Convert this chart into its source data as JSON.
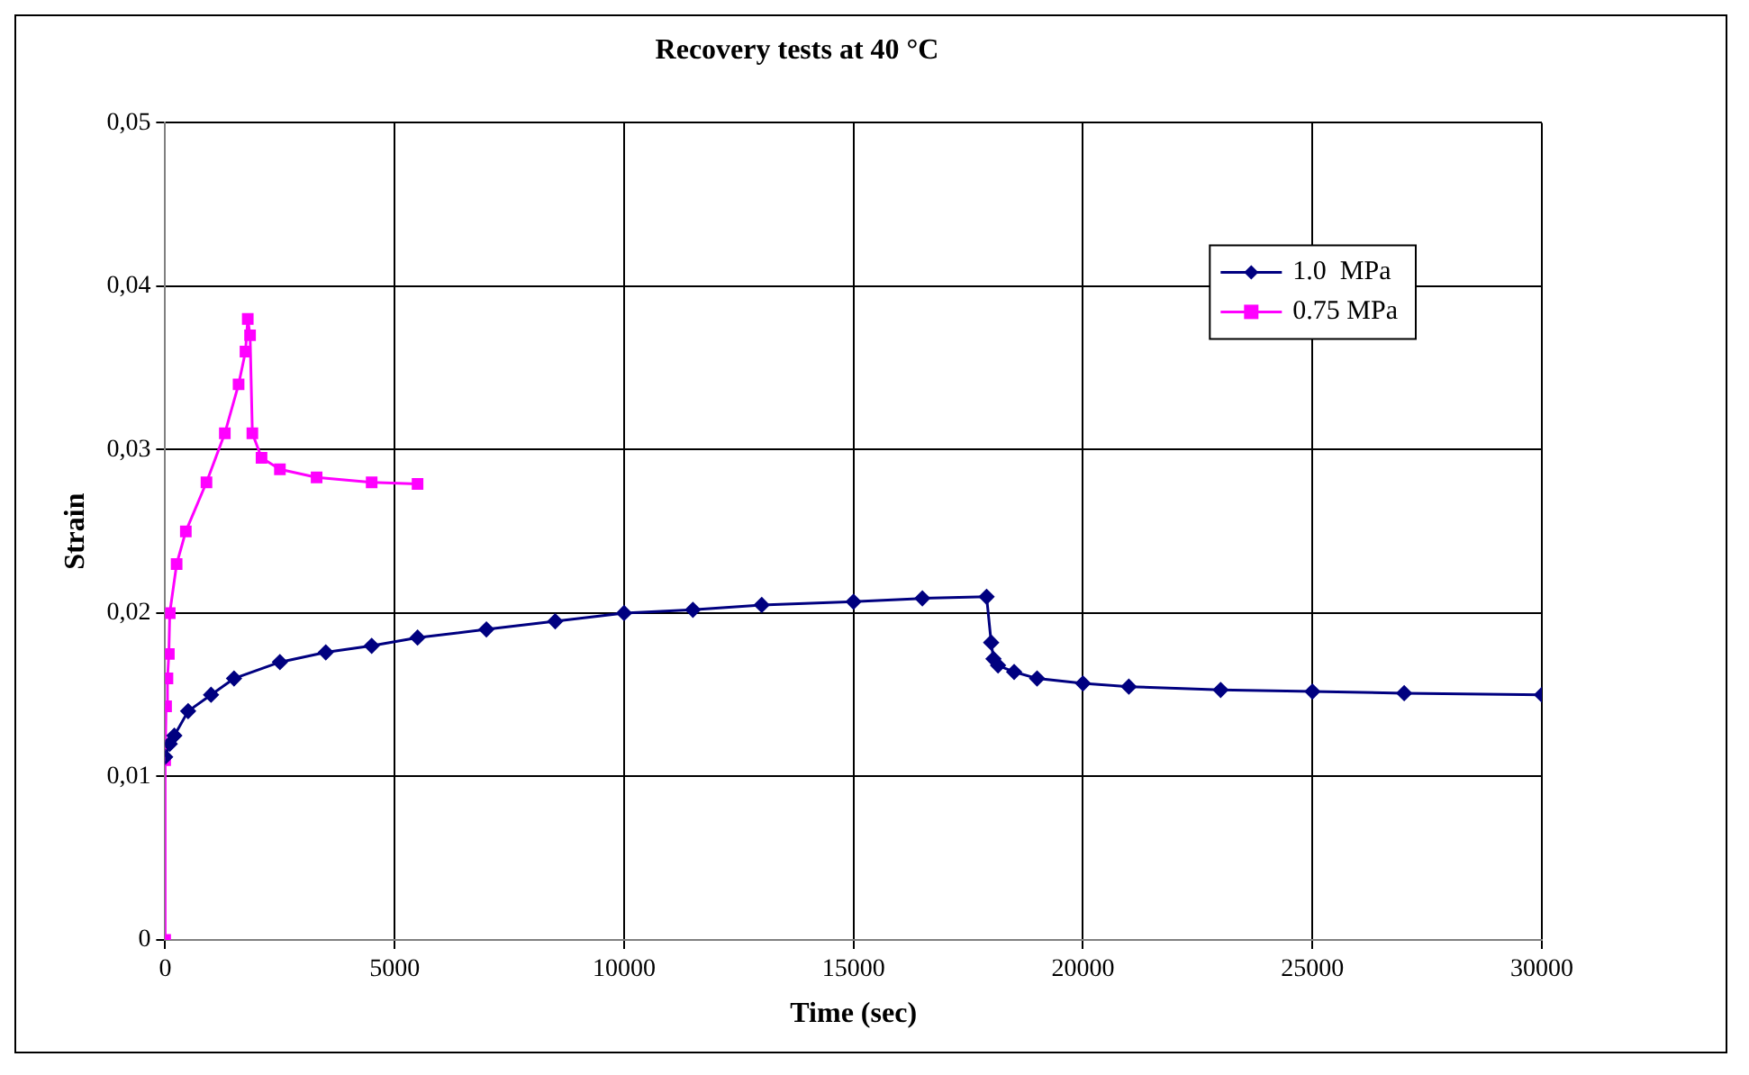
{
  "chart_data": {
    "type": "line",
    "title": "Recovery tests at 40 °C",
    "xlabel": "Time (sec)",
    "ylabel": "Strain",
    "xlim": [
      0,
      30000
    ],
    "xticks": [
      0,
      5000,
      10000,
      15000,
      20000,
      25000,
      30000
    ],
    "ylim": [
      0,
      0.05
    ],
    "yticks": [
      0,
      {
        "value": 0.01,
        "label": "0,01"
      },
      {
        "value": 0.02,
        "label": "0,02"
      },
      {
        "value": 0.03,
        "label": "0,03"
      },
      {
        "value": 0.04,
        "label": "0,04"
      },
      {
        "value": 0.05,
        "label": "0,05"
      }
    ],
    "grid": true,
    "legend": "top right",
    "line_style": "solid",
    "series": [
      {
        "name": "1.0  MPa",
        "color": "#000080",
        "marker": "diamond",
        "x": [
          0,
          100,
          200,
          500,
          1000,
          1500,
          2500,
          3500,
          4500,
          5500,
          7000,
          8500,
          10000,
          11500,
          13000,
          15000,
          16500,
          17900,
          18000,
          18050,
          18150,
          18500,
          19000,
          20000,
          21000,
          23000,
          25000,
          27000,
          30000
        ],
        "values": [
          0.0112,
          0.012,
          0.0125,
          0.014,
          0.015,
          0.016,
          0.017,
          0.0176,
          0.018,
          0.0185,
          0.019,
          0.0195,
          0.02,
          0.0202,
          0.0205,
          0.0207,
          0.0209,
          0.021,
          0.0182,
          0.0172,
          0.0168,
          0.0164,
          0.016,
          0.0157,
          0.0155,
          0.0153,
          0.0152,
          0.0151,
          0.015
        ]
      },
      {
        "name": "0.75 MPa",
        "color": "#ff00ff",
        "marker": "square",
        "x": [
          0,
          0,
          20,
          50,
          80,
          100,
          250,
          450,
          900,
          1300,
          1600,
          1750,
          1800,
          1850,
          1900,
          2100,
          2500,
          3300,
          4500,
          5500
        ],
        "values": [
          0,
          0.011,
          0.0143,
          0.016,
          0.0175,
          0.02,
          0.023,
          0.025,
          0.028,
          0.031,
          0.034,
          0.036,
          0.038,
          0.037,
          0.031,
          0.0295,
          0.0288,
          0.0283,
          0.028,
          0.0279
        ]
      }
    ]
  }
}
